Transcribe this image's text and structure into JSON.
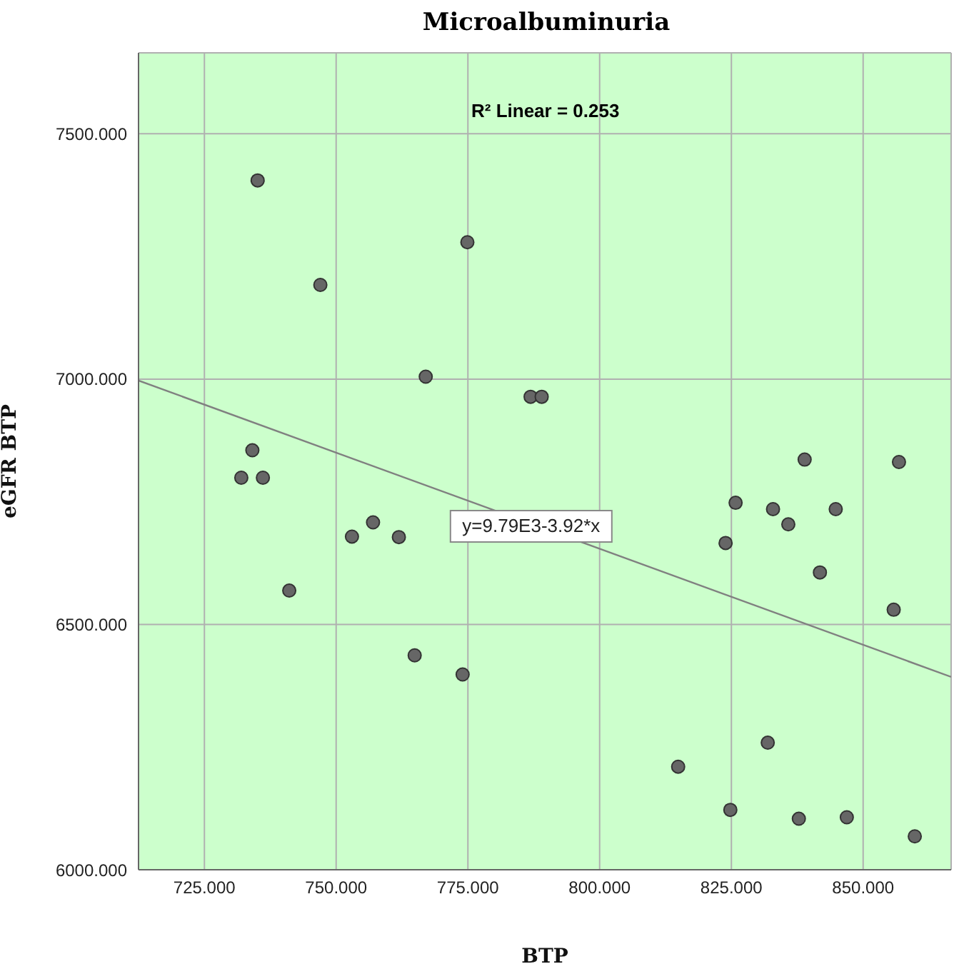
{
  "chart_data": {
    "type": "scatter",
    "title": "Microalbuminuria",
    "xlabel": "BTP",
    "ylabel": "eGFR  BTP",
    "xlim": [
      712.5,
      866.7
    ],
    "ylim": [
      6000,
      7665
    ],
    "xticks": [
      {
        "value": 725,
        "label": "725.000"
      },
      {
        "value": 750,
        "label": "750.000"
      },
      {
        "value": 775,
        "label": "775.000"
      },
      {
        "value": 800,
        "label": "800.000"
      },
      {
        "value": 825,
        "label": "825.000"
      },
      {
        "value": 850,
        "label": "850.000"
      }
    ],
    "yticks": [
      {
        "value": 6000,
        "label": "6000.000"
      },
      {
        "value": 6500,
        "label": "6500.000"
      },
      {
        "value": 7000,
        "label": "7000.000"
      },
      {
        "value": 7500,
        "label": "7500.000"
      }
    ],
    "grid": true,
    "series": [
      {
        "marker": "circle",
        "color": "#666666",
        "x": [
          735.1,
          774.9,
          747.0,
          767.0,
          786.9,
          789.0,
          734.1,
          732.0,
          736.1,
          741.1,
          753.0,
          757.0,
          761.9,
          764.9,
          774.0,
          838.9,
          856.8,
          825.8,
          832.9,
          835.8,
          844.8,
          823.9,
          841.8,
          855.8,
          831.9,
          814.9,
          824.8,
          837.8,
          846.9,
          859.8
        ],
        "values": [
          7405,
          7279,
          7192,
          7005,
          6964,
          6964,
          6855,
          6799,
          6799,
          6569,
          6679,
          6708,
          6678,
          6437,
          6398,
          6836,
          6831,
          6748,
          6735,
          6704,
          6735,
          6666,
          6606,
          6530,
          6259,
          6210,
          6122,
          6104,
          6107,
          6068
        ]
      },
      {
        "type": "line",
        "color": "#808080",
        "x": [
          712.5,
          866.7
        ],
        "values": [
          6997,
          6393
        ]
      }
    ],
    "annotations": [
      "R² Linear = 0.253",
      {
        "text": "y=9.79E3-3.92*x",
        "x": 787,
        "y": 6700
      }
    ]
  }
}
